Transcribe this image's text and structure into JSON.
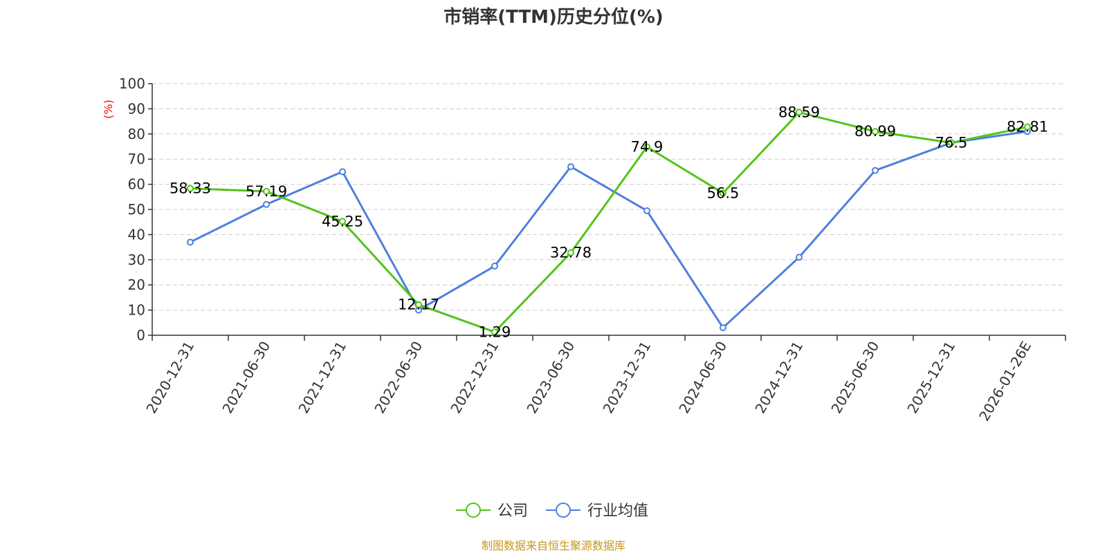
{
  "chart_data": {
    "type": "line",
    "title": "市销率(TTM)历史分位(%)",
    "ylabel": "(%)",
    "xlabel": "",
    "ylim": [
      0,
      100
    ],
    "yticks": [
      0,
      10,
      20,
      30,
      40,
      50,
      60,
      70,
      80,
      90,
      100
    ],
    "grid": true,
    "legend_position": "bottom-center",
    "categories": [
      "2020-12-31",
      "2021-06-30",
      "2021-12-31",
      "2022-06-30",
      "2022-12-31",
      "2023-06-30",
      "2023-12-31",
      "2024-06-30",
      "2024-12-31",
      "2025-06-30",
      "2025-12-31",
      "2026-01-26E"
    ],
    "series": [
      {
        "name": "公司",
        "color": "#52c41a",
        "values": [
          58.33,
          57.19,
          45.25,
          12.17,
          1.29,
          32.78,
          74.9,
          56.5,
          88.59,
          80.99,
          76.5,
          82.81
        ],
        "labels": [
          "58.33",
          "57.19",
          "45.25",
          "12.17",
          "1.29",
          "32.78",
          "74.9",
          "56.5",
          "88.59",
          "80.99",
          "76.5",
          "82.81"
        ]
      },
      {
        "name": "行业均值",
        "color": "#4e7fdc",
        "values": [
          37,
          52,
          65,
          10,
          27.5,
          67,
          49.5,
          3,
          31,
          65.5,
          76.5,
          81
        ]
      }
    ]
  },
  "source_text": "制图数据来自恒生聚源数据库"
}
